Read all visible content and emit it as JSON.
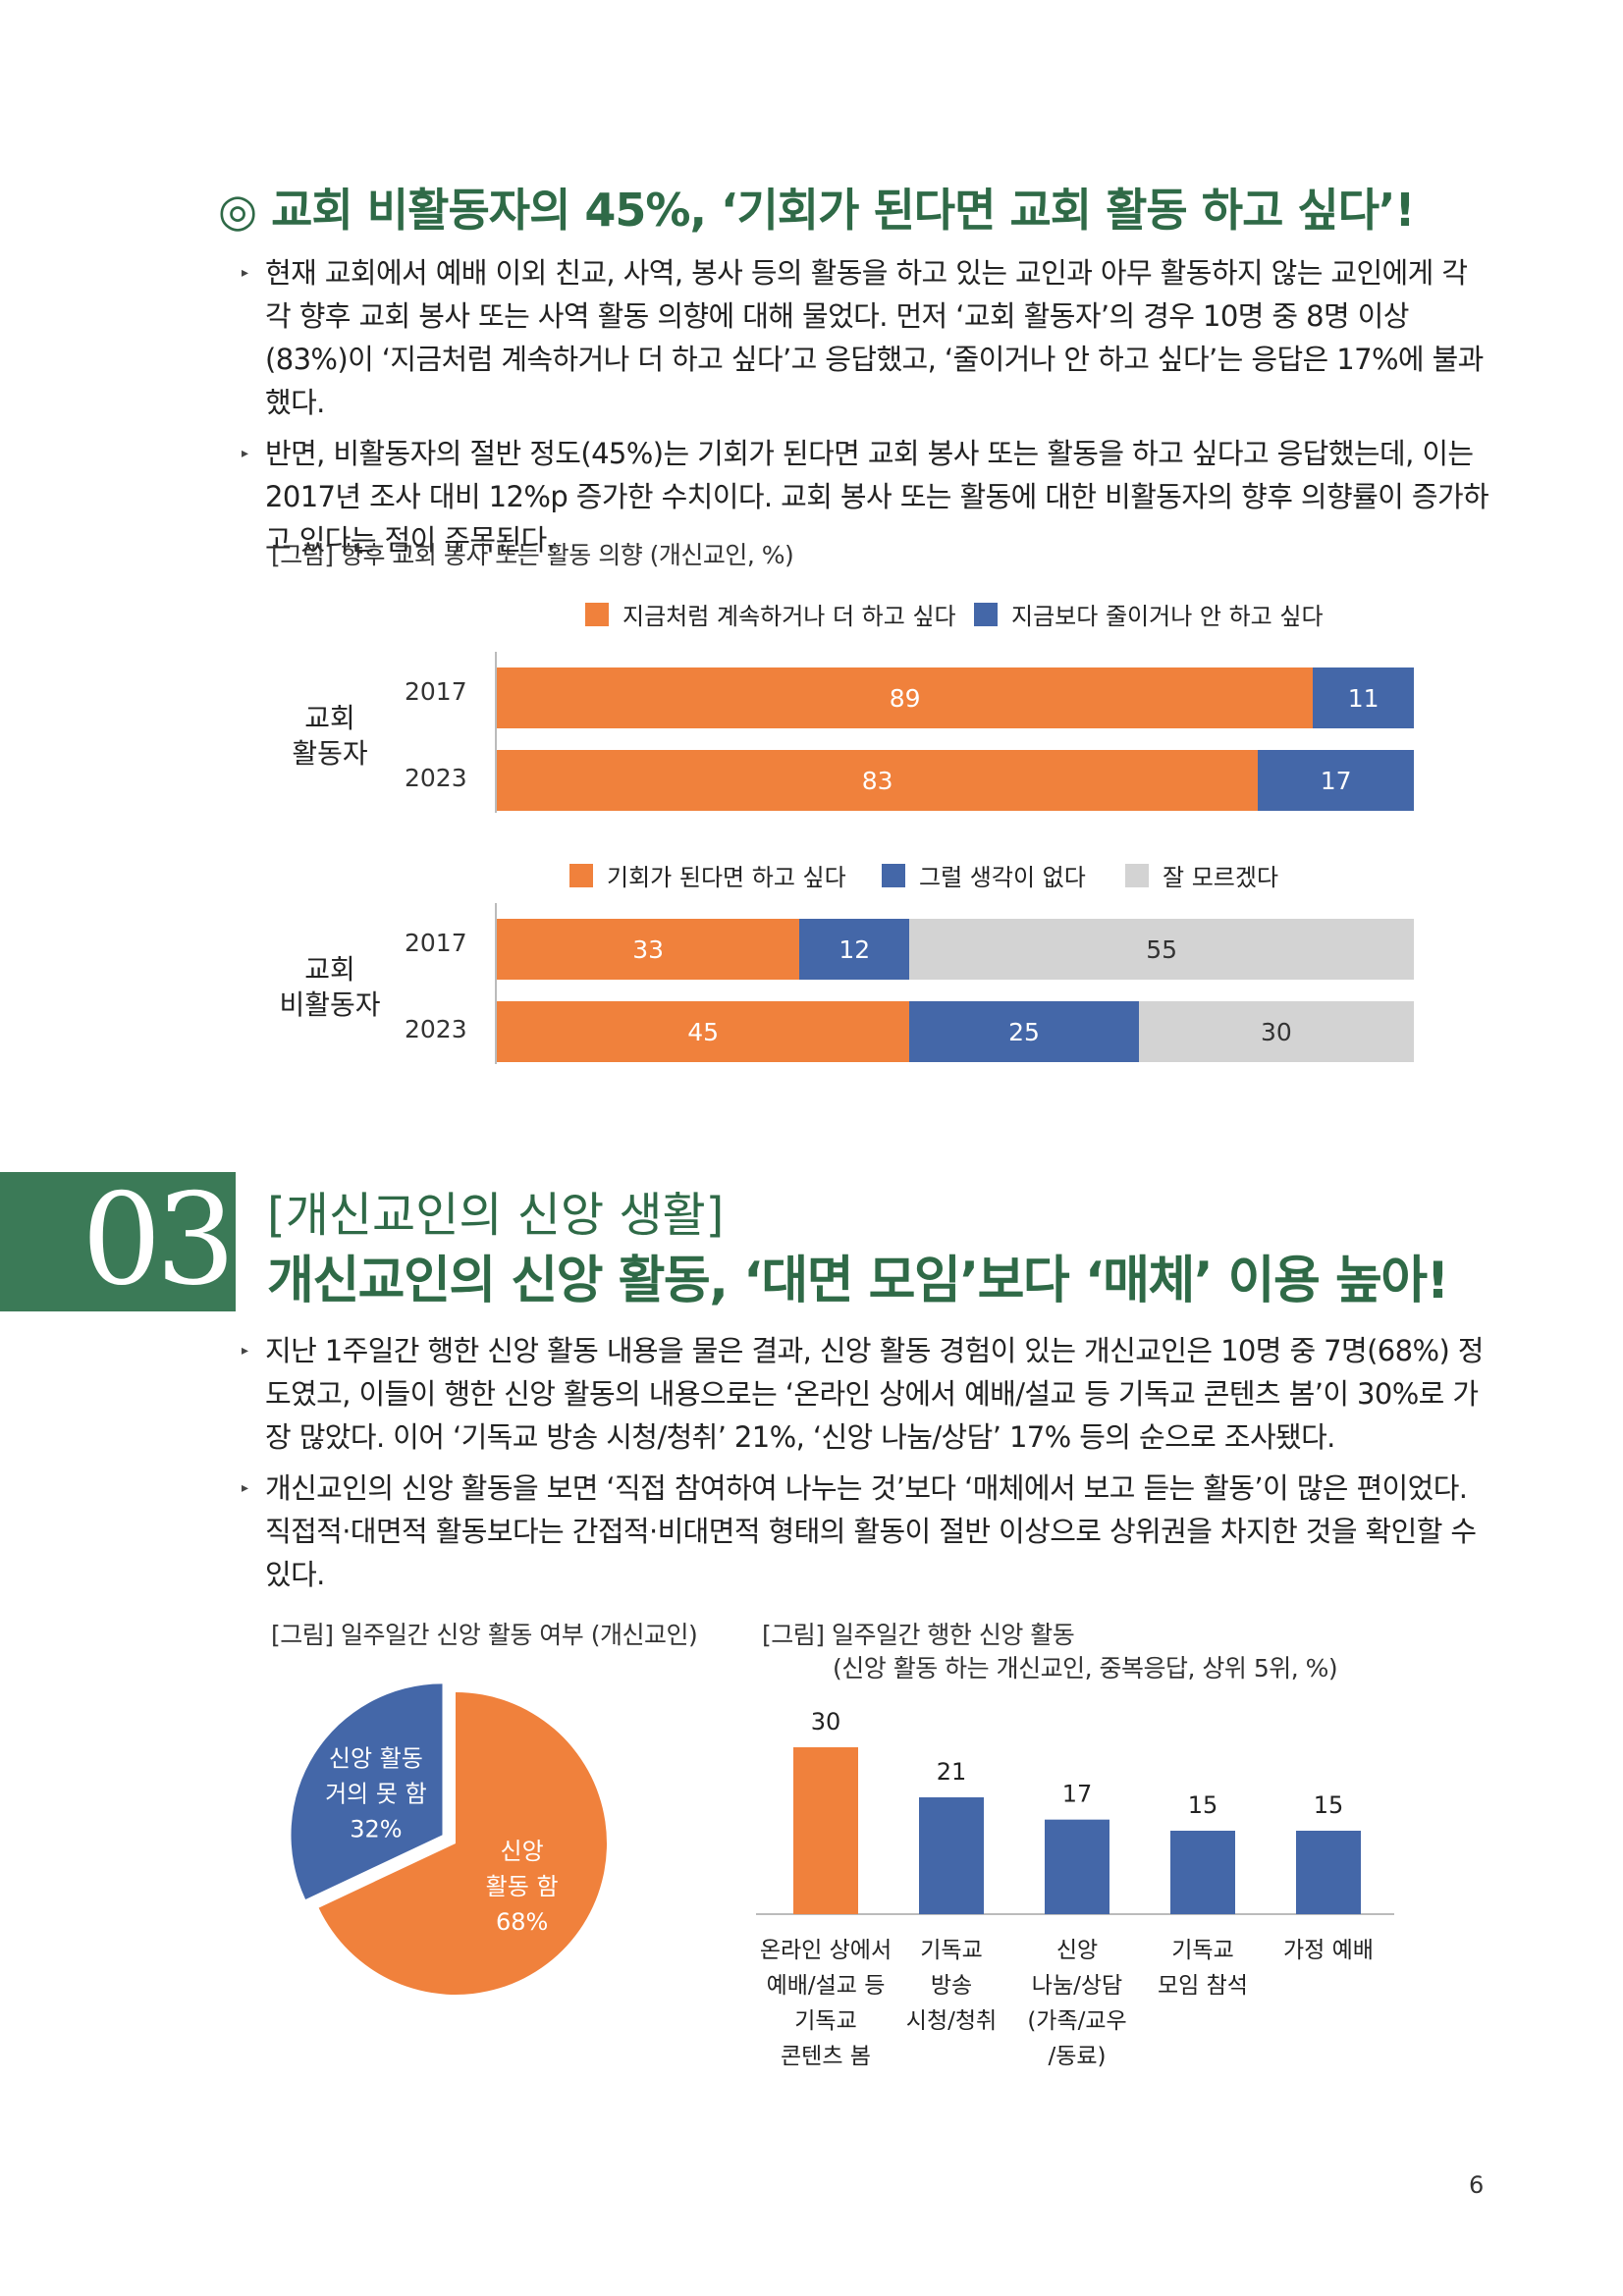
{
  "section1": {
    "heading": "◎ 교회 비활동자의 45%, ‘기회가 된다면 교회 활동 하고 싶다’!",
    "bullets": [
      "현재 교회에서 예배 이외 친교, 사역, 봉사 등의 활동을 하고 있는 교인과 아무 활동하지 않는 교인에게 각각 향후 교회 봉사 또는 사역 활동 의향에 대해 물었다. 먼저 ‘교회 활동자’의 경우 10명 중 8명 이상(83%)이 ‘지금처럼 계속하거나 더 하고 싶다’고 응답했고, ‘줄이거나 안 하고 싶다’는 응답은 17%에 불과했다.",
      "반면, 비활동자의 절반 정도(45%)는 기회가 된다면 교회 봉사 또는 활동을 하고 싶다고 응답했는데, 이는 2017년 조사 대비 12%p 증가한 수치이다. 교회 봉사 또는 활동에 대한 비활동자의 향후 의향률이 증가하고 있다는 점이 주목된다."
    ],
    "figure_caption": "[그림] 향후 교회 봉사 또는 활동 의향 (개신교인, %)",
    "group1_label_line1": "교회",
    "group1_label_line2": "활동자",
    "group2_label_line1": "교회",
    "group2_label_line2": "비활동자"
  },
  "chart_data": [
    {
      "type": "bar",
      "orientation": "horizontal-stacked",
      "group": "교회 활동자",
      "categories": [
        "2017",
        "2023"
      ],
      "series": [
        {
          "name": "지금처럼 계속하거나 더 하고 싶다",
          "values": [
            89,
            83
          ],
          "color": "#f0813c"
        },
        {
          "name": "지금보다 줄이거나 안 하고 싶다",
          "values": [
            11,
            17
          ],
          "color": "#4467a8"
        }
      ]
    },
    {
      "type": "bar",
      "orientation": "horizontal-stacked",
      "group": "교회 비활동자",
      "categories": [
        "2017",
        "2023"
      ],
      "series": [
        {
          "name": "기회가 된다면 하고 싶다",
          "values": [
            33,
            45
          ],
          "color": "#f0813c"
        },
        {
          "name": "그럴 생각이 없다",
          "values": [
            12,
            25
          ],
          "color": "#4467a8"
        },
        {
          "name": "잘 모르겠다",
          "values": [
            55,
            30
          ],
          "color": "#d3d3d3"
        }
      ]
    },
    {
      "type": "pie",
      "title": "[그림] 일주일간 신앙 활동 여부 (개신교인)",
      "slices": [
        {
          "label_lines": [
            "신앙",
            "활동 함",
            "68%"
          ],
          "value": 68,
          "color": "#f0813c"
        },
        {
          "label_lines": [
            "신앙 활동",
            "거의 못 함",
            "32%"
          ],
          "value": 32,
          "color": "#4467a8"
        }
      ]
    },
    {
      "type": "bar",
      "title_line1": "[그림] 일주일간 행한 신앙 활동",
      "title_line2": "(신앙 활동 하는 개신교인, 중복응답, 상위 5위, %)",
      "categories": [
        [
          "온라인 상에서",
          "예배/설교 등",
          "기독교",
          "콘텐츠 봄"
        ],
        [
          "기독교",
          "방송",
          "시청/청취"
        ],
        [
          "신앙",
          "나눔/상담",
          "(가족/교우",
          "/동료)"
        ],
        [
          "기독교",
          "모임 참석"
        ],
        [
          "가정 예배"
        ]
      ],
      "values": [
        30,
        21,
        17,
        15,
        15
      ],
      "colors": [
        "#f0813c",
        "#4467a8",
        "#4467a8",
        "#4467a8",
        "#4467a8"
      ],
      "ylim": [
        0,
        30
      ]
    }
  ],
  "section3": {
    "number": "03",
    "subtitle": "[개신교인의 신앙 생활]",
    "title": "개신교인의 신앙 활동, ‘대면 모임’보다 ‘매체’ 이용 높아!",
    "bullets": [
      "지난 1주일간 행한 신앙 활동 내용을 물은 결과, 신앙 활동 경험이 있는 개신교인은 10명 중 7명(68%) 정도였고, 이들이 행한 신앙 활동의 내용으로는 ‘온라인 상에서 예배/설교 등 기독교 콘텐츠 봄’이 30%로 가장 많았다. 이어 ‘기독교 방송 시청/청취’ 21%, ‘신앙 나눔/상담’ 17% 등의 순으로 조사됐다.",
      "개신교인의 신앙 활동을 보면 ‘직접 참여하여 나누는 것’보다 ‘매체에서 보고 듣는 활동’이 많은 편이었다. 직접적·대면적 활동보다는 간접적·비대면적 형태의 활동이 절반 이상으로 상위권을 차지한 것을 확인할 수 있다."
    ]
  },
  "page_number": "6"
}
